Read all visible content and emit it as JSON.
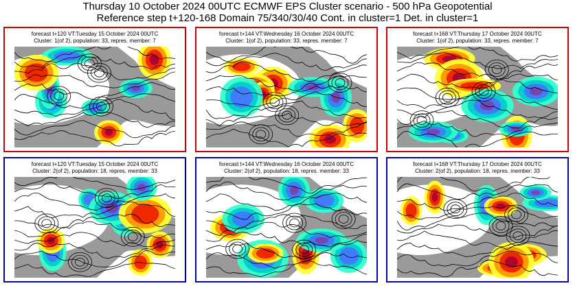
{
  "title_line1": "Thursday 10 October 2024 00UTC ECMWF EPS Cluster scenario - 500 hPa Geopotential",
  "title_line2": "Reference step t+120-168 Domain 75/340/30/40 Cont. in cluster=1 Det. in cluster=1",
  "colors": {
    "cluster1_border": "#cc0000",
    "cluster2_border": "#0000aa",
    "positive_anomaly": [
      "#ffff33",
      "#ff9900",
      "#ee2200",
      "#aa0033"
    ],
    "negative_anomaly": [
      "#33ffcc",
      "#00cccc",
      "#4477ff",
      "#7744aa"
    ],
    "land": "#9a9a9a",
    "sea": "#ffffff"
  },
  "chart_data": {
    "type": "heatmap",
    "variable": "500 hPa Geopotential",
    "layout": "2 rows x 3 columns",
    "panels": [
      {
        "row": 1,
        "col": 1,
        "cluster": 1,
        "line1": "forecast t+120 VT:Tuesday 15 October 2024 00UTC",
        "line2": "Cluster: 1(of 2), population: 33, repres. member: 7",
        "step": 120,
        "population": 33,
        "repres_member": 7
      },
      {
        "row": 1,
        "col": 2,
        "cluster": 1,
        "line1": "forecast t+144 VT:Wednesday 16 October 2024 00UTC",
        "line2": "Cluster: 1(of 2), population: 33, repres. member: 7",
        "step": 144,
        "population": 33,
        "repres_member": 7
      },
      {
        "row": 1,
        "col": 3,
        "cluster": 1,
        "line1": "forecast t+168 VT:Thursday 17 October 2024 00UTC",
        "line2": "Cluster: 1(of 2), population: 33, repres. member: 7",
        "step": 168,
        "population": 33,
        "repres_member": 7
      },
      {
        "row": 2,
        "col": 1,
        "cluster": 2,
        "line1": "forecast t+120 VT:Tuesday 15 October 2024 00UTC",
        "line2": "Cluster: 2(of 2), population: 18, repres. member: 33",
        "step": 120,
        "population": 18,
        "repres_member": 33
      },
      {
        "row": 2,
        "col": 2,
        "cluster": 2,
        "line1": "forecast t+144 VT:Wednesday 16 October 2024 00UTC",
        "line2": "Cluster: 2(of 2), population: 18, repres. member: 33",
        "step": 144,
        "population": 18,
        "repres_member": 33
      },
      {
        "row": 2,
        "col": 3,
        "cluster": 2,
        "line1": "forecast t+168 VT:Thursday 17 October 2024 00UTC",
        "line2": "Cluster: 2(of 2), population: 18, repres. member: 33",
        "step": 168,
        "population": 18,
        "repres_member": 33
      }
    ]
  }
}
